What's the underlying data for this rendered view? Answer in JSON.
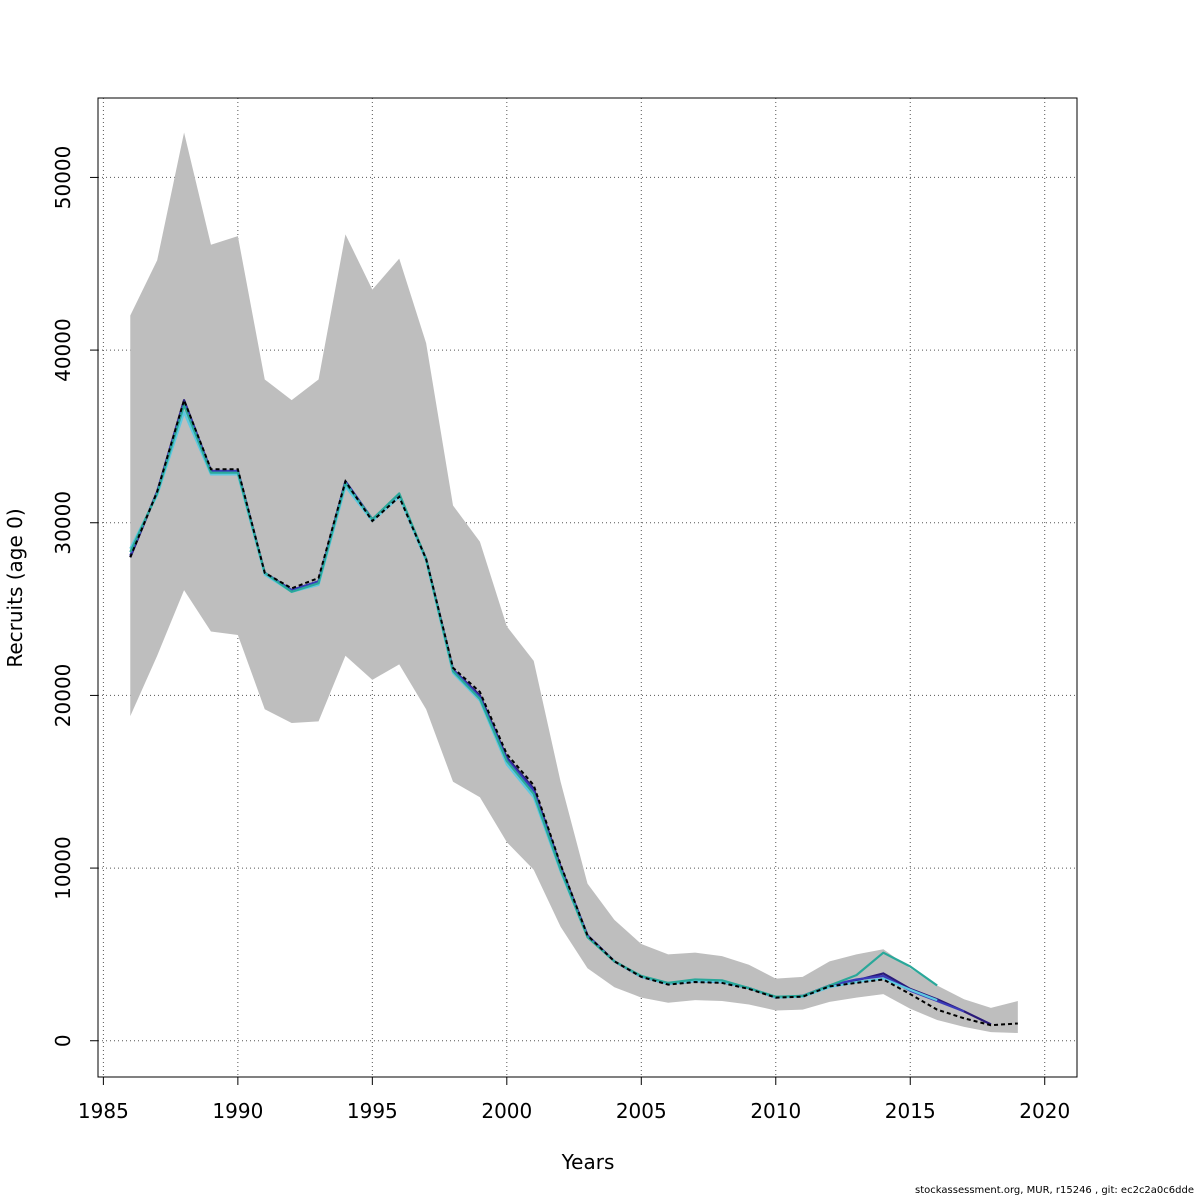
{
  "chart_data": {
    "type": "line",
    "title": "",
    "xlabel": "Years",
    "ylabel": "Recruits (age 0)",
    "xlim": [
      1984.8,
      2021.2
    ],
    "ylim": [
      -2100,
      54600
    ],
    "xticks": [
      1985,
      1990,
      1995,
      2000,
      2005,
      2010,
      2015,
      2020
    ],
    "yticks": [
      0,
      10000,
      20000,
      30000,
      40000,
      50000
    ],
    "xtick_labels": [
      "1985",
      "1990",
      "1995",
      "2000",
      "2005",
      "2010",
      "2015",
      "2020"
    ],
    "ytick_labels": [
      "0",
      "10000",
      "20000",
      "30000",
      "40000",
      "50000"
    ],
    "grid": true,
    "colors": {
      "ci_band": "#bebebe",
      "base": "#000000",
      "retro_navy": "#2a1a7a",
      "retro_blue": "#3a3ab8",
      "retro_teal": "#2aa89a",
      "retro_cyan": "#5ec8e0"
    },
    "confidence_band": {
      "x": [
        1986,
        1987,
        1988,
        1989,
        1990,
        1991,
        1992,
        1993,
        1994,
        1995,
        1996,
        1997,
        1998,
        1999,
        2000,
        2001,
        2002,
        2003,
        2004,
        2005,
        2006,
        2007,
        2008,
        2009,
        2010,
        2011,
        2012,
        2013,
        2014,
        2015,
        2016,
        2017,
        2018,
        2019
      ],
      "upper": [
        42000,
        45200,
        52600,
        46100,
        46600,
        38300,
        37100,
        38300,
        46700,
        43500,
        45300,
        40400,
        31000,
        28900,
        24000,
        22000,
        15000,
        9100,
        7000,
        5600,
        5000,
        5100,
        4900,
        4400,
        3600,
        3700,
        4600,
        5000,
        5300,
        4200,
        3200,
        2400,
        1900,
        2300
      ],
      "lower": [
        18800,
        22300,
        26100,
        23700,
        23500,
        19200,
        18400,
        18500,
        22300,
        20900,
        21800,
        19200,
        15000,
        14100,
        11500,
        9900,
        6600,
        4200,
        3100,
        2500,
        2200,
        2350,
        2300,
        2100,
        1750,
        1800,
        2250,
        2500,
        2700,
        1850,
        1200,
        800,
        500,
        450
      ]
    },
    "series": [
      {
        "color_key": "base",
        "dashed": true,
        "x": [
          1986,
          1987,
          1988,
          1989,
          1990,
          1991,
          1992,
          1993,
          1994,
          1995,
          1996,
          1997,
          1998,
          1999,
          2000,
          2001,
          2002,
          2003,
          2004,
          2005,
          2006,
          2007,
          2008,
          2009,
          2010,
          2011,
          2012,
          2013,
          2014,
          2015,
          2016,
          2017,
          2018,
          2019
        ],
        "values": [
          28000,
          31800,
          37100,
          33100,
          33100,
          27100,
          26200,
          26800,
          32400,
          30100,
          31500,
          27900,
          21600,
          20200,
          16600,
          14800,
          10200,
          6100,
          4600,
          3700,
          3250,
          3400,
          3350,
          3000,
          2500,
          2550,
          3150,
          3350,
          3550,
          2700,
          1800,
          1300,
          900,
          1000
        ]
      },
      {
        "color_key": "retro_navy",
        "dashed": false,
        "x": [
          1986,
          1987,
          1988,
          1989,
          1990,
          1991,
          1992,
          1993,
          1994,
          1995,
          1996,
          1997,
          1998,
          1999,
          2000,
          2001,
          2002,
          2003,
          2004,
          2005,
          2006,
          2007,
          2008,
          2009,
          2010,
          2011,
          2012,
          2013,
          2014,
          2015,
          2016,
          2017,
          2018
        ],
        "values": [
          28000,
          31800,
          37100,
          33000,
          33000,
          27100,
          26100,
          26600,
          32400,
          30200,
          31600,
          27900,
          21500,
          20000,
          16400,
          14600,
          10100,
          6100,
          4600,
          3700,
          3300,
          3450,
          3400,
          3050,
          2500,
          2600,
          3200,
          3500,
          3900,
          3000,
          2400,
          1700,
          950
        ]
      },
      {
        "color_key": "retro_blue",
        "dashed": false,
        "x": [
          1986,
          1987,
          1988,
          1989,
          1990,
          1991,
          1992,
          1993,
          1994,
          1995,
          1996,
          1997,
          1998,
          1999,
          2000,
          2001,
          2002,
          2003,
          2004,
          2005,
          2006,
          2007,
          2008,
          2009,
          2010,
          2011,
          2012,
          2013,
          2014,
          2015,
          2016,
          2017
        ],
        "values": [
          28100,
          31800,
          37000,
          33000,
          33000,
          27100,
          26100,
          26600,
          32400,
          30200,
          31600,
          27900,
          21500,
          19900,
          16300,
          14500,
          10000,
          6100,
          4600,
          3700,
          3300,
          3450,
          3400,
          3050,
          2500,
          2600,
          3200,
          3550,
          3750,
          2900,
          2300,
          1700
        ]
      },
      {
        "color_key": "retro_cyan",
        "dashed": false,
        "x": [
          1986,
          1987,
          1988,
          1989,
          1990,
          1991,
          1992,
          1993,
          1994,
          1995,
          1996,
          1997,
          1998,
          1999,
          2000,
          2001,
          2002,
          2003,
          2004,
          2005,
          2006,
          2007,
          2008,
          2009,
          2010,
          2011,
          2012,
          2013,
          2014,
          2015,
          2016
        ],
        "values": [
          28500,
          31600,
          36400,
          32800,
          32800,
          27000,
          26000,
          26400,
          32100,
          30100,
          31500,
          27800,
          21300,
          19700,
          16000,
          14100,
          9800,
          6000,
          4600,
          3700,
          3300,
          3450,
          3400,
          3050,
          2500,
          2550,
          3100,
          3400,
          3600,
          2950,
          2350
        ]
      },
      {
        "color_key": "retro_teal",
        "dashed": false,
        "x": [
          1986,
          1987,
          1988,
          1989,
          1990,
          1991,
          1992,
          1993,
          1994,
          1995,
          1996,
          1997,
          1998,
          1999,
          2000,
          2001,
          2002,
          2003,
          2004,
          2005,
          2006,
          2007,
          2008,
          2009,
          2010,
          2011,
          2012,
          2013,
          2014,
          2015,
          2016
        ],
        "values": [
          28300,
          31700,
          36800,
          32900,
          32900,
          27100,
          26000,
          26500,
          32300,
          30200,
          31700,
          27900,
          21400,
          19800,
          16200,
          14300,
          9900,
          6000,
          4600,
          3750,
          3350,
          3550,
          3500,
          3050,
          2550,
          2600,
          3200,
          3800,
          5100,
          4300,
          3200
        ]
      }
    ]
  },
  "footer": "stockassessment.org, MUR, r15246 , git: ec2c2a0c6dde"
}
